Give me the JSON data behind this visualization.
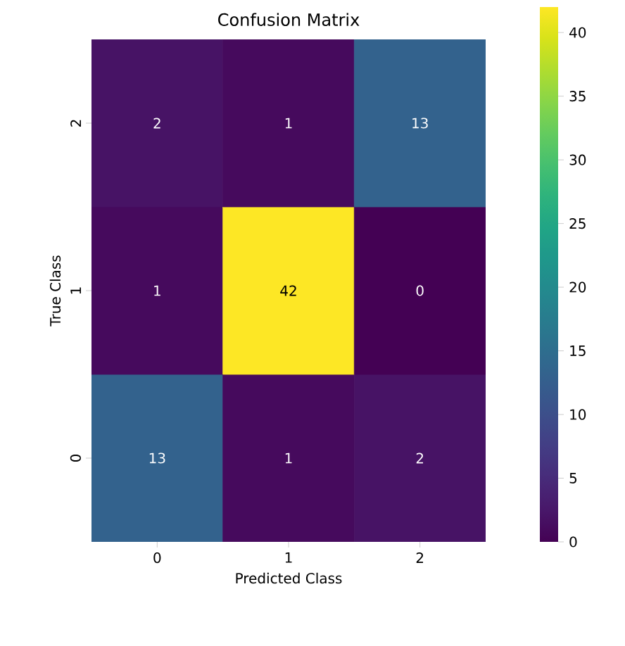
{
  "chart_data": {
    "type": "heatmap",
    "title": "Confusion Matrix",
    "xlabel": "Predicted Class",
    "ylabel": "True Class",
    "categories": [
      "0",
      "1",
      "2"
    ],
    "y_categories": [
      "2",
      "1",
      "0"
    ],
    "cells": [
      [
        2,
        1,
        13
      ],
      [
        1,
        42,
        0
      ],
      [
        13,
        1,
        2
      ]
    ],
    "data_labels": true,
    "clim": [
      0,
      42
    ],
    "cticks": [
      0,
      5,
      10,
      15,
      20,
      25,
      30,
      35,
      40
    ]
  }
}
